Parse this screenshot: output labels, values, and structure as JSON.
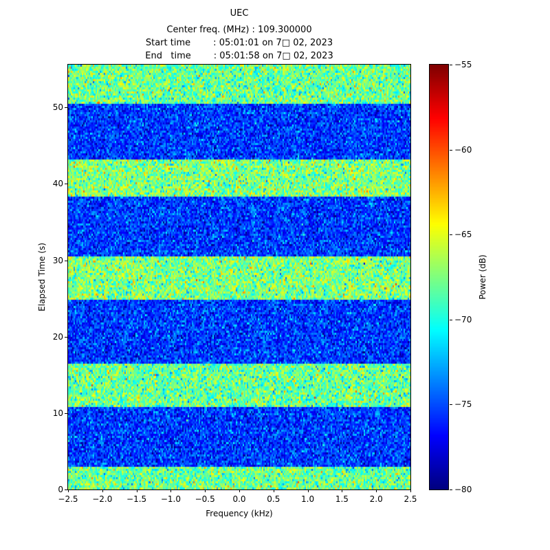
{
  "header": {
    "title": "UEC",
    "line_center_freq": "Center freq. (MHz) : 109.300000",
    "line_start": "Start time        : 05:01:01 on 7□ 02, 2023",
    "line_end": "End   time        : 05:01:58 on 7□ 02, 2023"
  },
  "chart_data": {
    "type": "heatmap",
    "subtype": "spectrogram-waterfall",
    "title": "UEC",
    "subtitle_lines": [
      "Center freq. (MHz) : 109.300000",
      "Start time        : 05:01:01 on 7□ 02, 2023",
      "End   time        : 05:01:58 on 7□ 02, 2023"
    ],
    "center_freq_mhz": "109.300000",
    "start_time": "05:01:01 on 7□ 02, 2023",
    "end_time": "05:01:58 on 7□ 02, 2023",
    "xlabel": "Frequency (kHz)",
    "ylabel": "Elapsed Time (s)",
    "xlim": [
      -2.5,
      2.5
    ],
    "ylim": [
      0,
      55.6
    ],
    "grid": false,
    "x_ticks": {
      "values": [
        -2.5,
        -2.0,
        -1.5,
        -1.0,
        -0.5,
        0.0,
        0.5,
        1.0,
        1.5,
        2.0,
        2.5
      ],
      "labels": [
        "−2.5",
        "−2.0",
        "−1.5",
        "−1.0",
        "−0.5",
        "0.0",
        "0.5",
        "1.0",
        "1.5",
        "2.0",
        "2.5"
      ]
    },
    "y_ticks": {
      "values": [
        0,
        10,
        20,
        30,
        40,
        50
      ],
      "labels": [
        "0",
        "10",
        "20",
        "30",
        "40",
        "50"
      ]
    },
    "colorbar": {
      "label": "Power (dB)",
      "position": "right",
      "colormap": "jet",
      "vmin": -80,
      "vmax": -55,
      "tick_values": [
        -55,
        -60,
        -65,
        -70,
        -75,
        -80
      ],
      "tick_labels": [
        "−55",
        "−60",
        "−65",
        "−70",
        "−75",
        "−80"
      ]
    },
    "bands": [
      {
        "t_start": 0.0,
        "t_end": 3.0,
        "mean_db": -68.0,
        "std_db": 2.2,
        "appearance": "green-yellow noise"
      },
      {
        "t_start": 3.0,
        "t_end": 10.8,
        "mean_db": -75.5,
        "std_db": 1.8,
        "appearance": "blue noise"
      },
      {
        "t_start": 10.8,
        "t_end": 16.5,
        "mean_db": -68.0,
        "std_db": 2.2,
        "appearance": "green-yellow noise"
      },
      {
        "t_start": 16.5,
        "t_end": 24.8,
        "mean_db": -75.5,
        "std_db": 1.8,
        "appearance": "blue noise"
      },
      {
        "t_start": 24.8,
        "t_end": 30.5,
        "mean_db": -67.5,
        "std_db": 2.2,
        "appearance": "green-yellow noise"
      },
      {
        "t_start": 30.5,
        "t_end": 38.4,
        "mean_db": -75.5,
        "std_db": 1.8,
        "appearance": "blue noise"
      },
      {
        "t_start": 38.4,
        "t_end": 43.3,
        "mean_db": -67.5,
        "std_db": 2.2,
        "appearance": "green-yellow noise"
      },
      {
        "t_start": 43.3,
        "t_end": 50.6,
        "mean_db": -75.5,
        "std_db": 1.8,
        "appearance": "blue noise"
      },
      {
        "t_start": 50.6,
        "t_end": 55.6,
        "mean_db": -68.0,
        "std_db": 2.2,
        "appearance": "green-yellow noise"
      }
    ],
    "noise_seed": 42,
    "colors": {
      "low_power": "#000080",
      "high_power": "#800000",
      "background": "#ffffff",
      "axes": "#000000"
    }
  }
}
